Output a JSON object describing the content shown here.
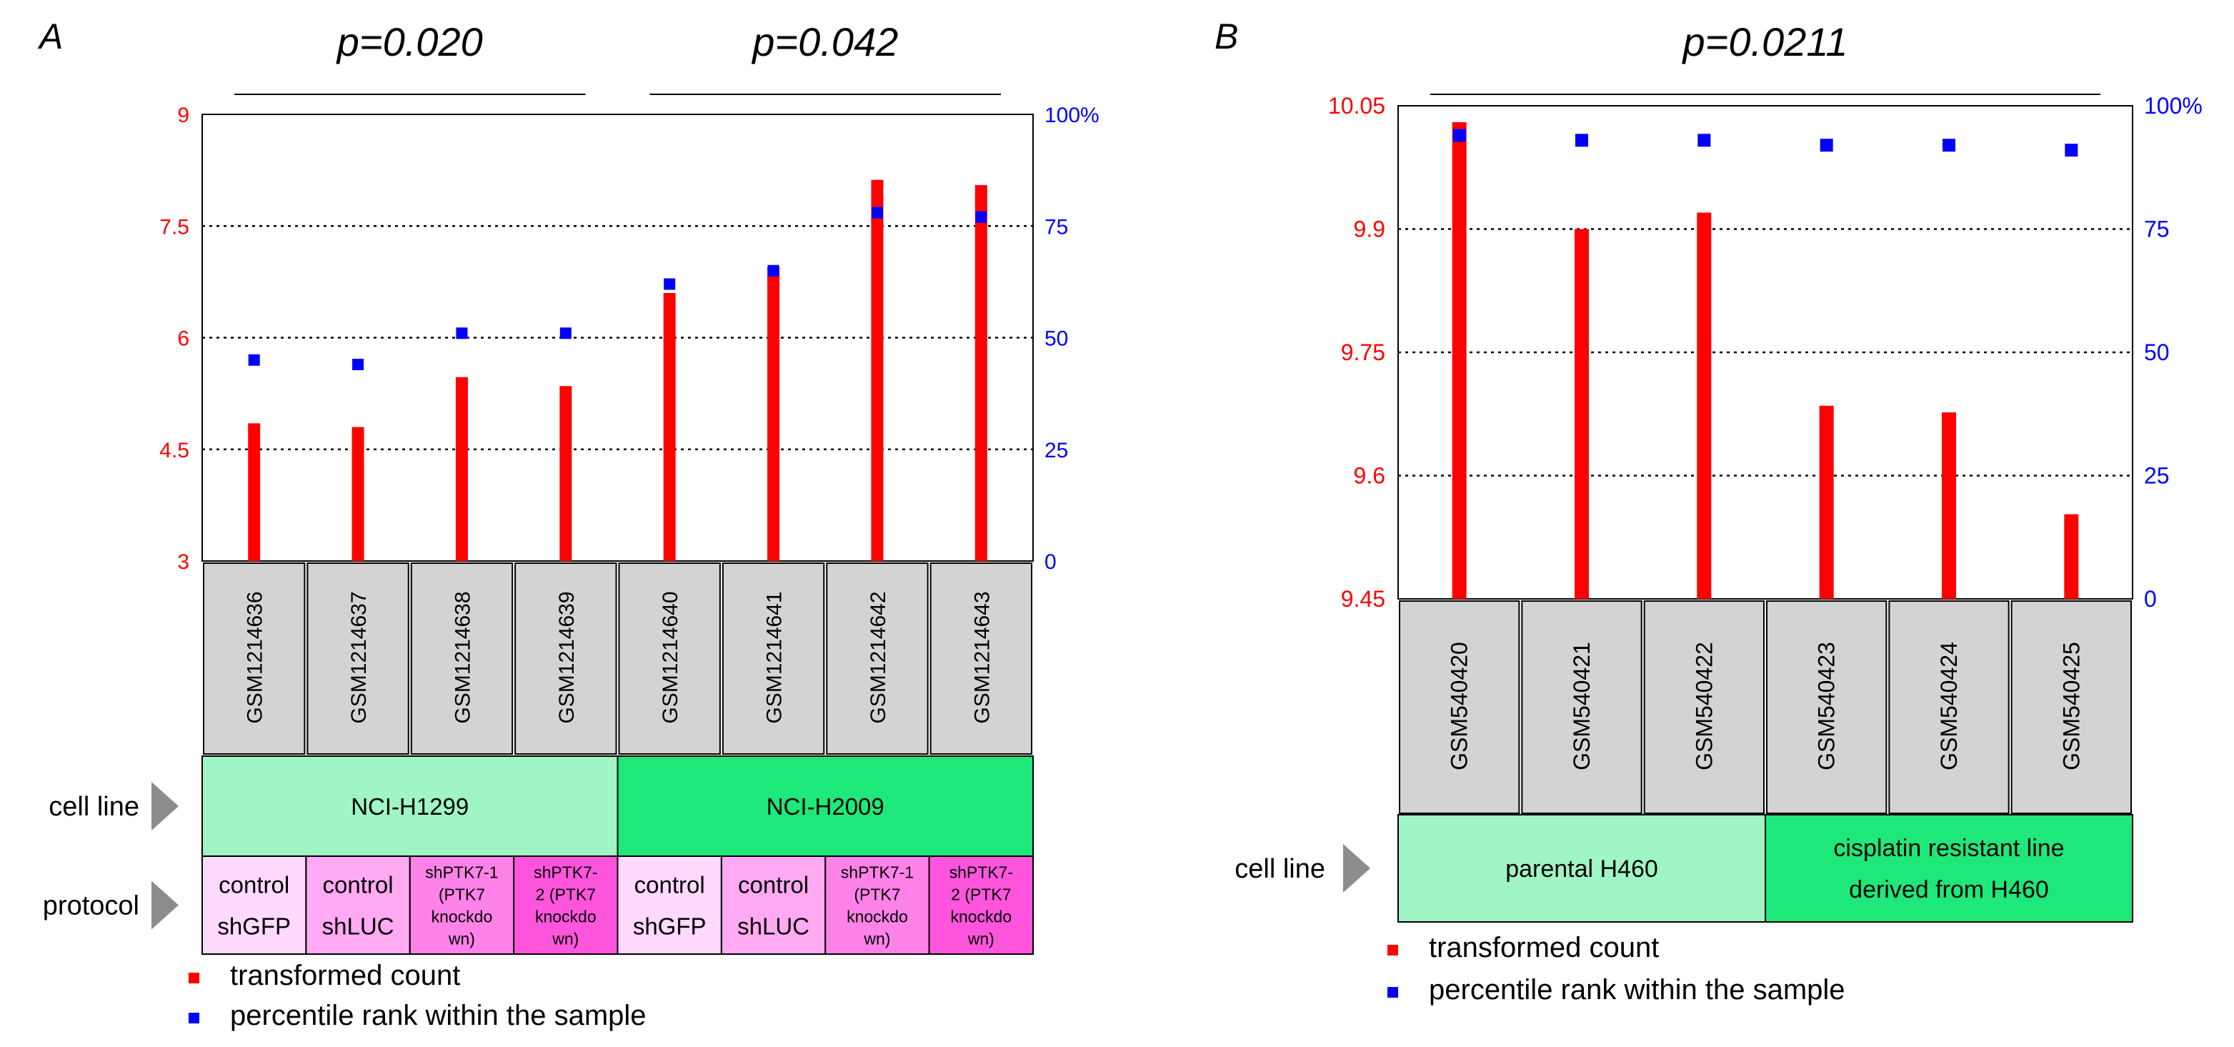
{
  "chart_data": [
    {
      "panel": "A",
      "type": "bar",
      "title_label": "A",
      "pvalues": [
        {
          "label": "p=0.020",
          "from": 0,
          "to": 3
        },
        {
          "label": "p=0.042",
          "from": 4,
          "to": 7
        }
      ],
      "left_axis": {
        "ylim": [
          3,
          9
        ],
        "ticks": [
          "3",
          "4.5",
          "6",
          "7.5",
          "9"
        ],
        "tick_values": [
          3,
          4.5,
          6,
          7.5,
          9
        ],
        "color": "#ff0000"
      },
      "right_axis": {
        "ylim": [
          0,
          100
        ],
        "ticks": [
          "0",
          "25",
          "50",
          "75",
          "100%"
        ],
        "tick_values": [
          0,
          25,
          50,
          75,
          100
        ],
        "color": "#0000ff"
      },
      "categories": [
        "GSM1214636",
        "GSM1214637",
        "GSM1214638",
        "GSM1214639",
        "GSM1214640",
        "GSM1214641",
        "GSM1214642",
        "GSM1214643"
      ],
      "series": [
        {
          "name": "transformed count",
          "axis": "left",
          "color": "#ff0000",
          "marker": "bar",
          "values": [
            4.85,
            4.8,
            5.47,
            5.35,
            6.6,
            6.95,
            8.12,
            8.05
          ]
        },
        {
          "name": "percentile rank within the sample",
          "axis": "right",
          "color": "#0000ff",
          "marker": "square",
          "values": [
            45,
            44,
            51,
            51,
            62,
            65,
            78,
            77
          ]
        }
      ],
      "annotation_rows": [
        {
          "label": "cell line",
          "groups": [
            {
              "text": "NCI-H1299",
              "span": 4,
              "color": "#9ff5c4"
            },
            {
              "text": "NCI-H2009",
              "span": 4,
              "color": "#1ee87a"
            }
          ]
        },
        {
          "label": "protocol",
          "groups": [
            {
              "lines": [
                "control",
                "shGFP"
              ],
              "span": 1,
              "color": "#ffd9ff"
            },
            {
              "lines": [
                "control",
                "shLUC"
              ],
              "span": 1,
              "color": "#ffaaf2"
            },
            {
              "lines": [
                "shPTK7-1",
                "(PTK7",
                "knockdo",
                "wn)"
              ],
              "span": 1,
              "color": "#ff82e8"
            },
            {
              "lines": [
                "shPTK7-",
                "2 (PTK7",
                "knockdo",
                "wn)"
              ],
              "span": 1,
              "color": "#ff55dd"
            },
            {
              "lines": [
                "control",
                "shGFP"
              ],
              "span": 1,
              "color": "#ffd9ff"
            },
            {
              "lines": [
                "control",
                "shLUC"
              ],
              "span": 1,
              "color": "#ffaaf2"
            },
            {
              "lines": [
                "shPTK7-1",
                "(PTK7",
                "knockdo",
                "wn)"
              ],
              "span": 1,
              "color": "#ff82e8"
            },
            {
              "lines": [
                "shPTK7-",
                "2 (PTK7",
                "knockdo",
                "wn)"
              ],
              "span": 1,
              "color": "#ff55dd"
            }
          ]
        }
      ],
      "legend": [
        "transformed count",
        "percentile rank within the sample"
      ]
    },
    {
      "panel": "B",
      "type": "bar",
      "title_label": "B",
      "pvalues": [
        {
          "label": "p=0.0211",
          "from": 0,
          "to": 5
        }
      ],
      "left_axis": {
        "ylim": [
          9.45,
          10.05
        ],
        "ticks": [
          "9.45",
          "9.6",
          "9.75",
          "9.9",
          "10.05"
        ],
        "tick_values": [
          9.45,
          9.6,
          9.75,
          9.9,
          10.05
        ],
        "color": "#ff0000"
      },
      "right_axis": {
        "ylim": [
          0,
          100
        ],
        "ticks": [
          "0",
          "25",
          "50",
          "75",
          "100%"
        ],
        "tick_values": [
          0,
          25,
          50,
          75,
          100
        ],
        "color": "#0000ff"
      },
      "categories": [
        "GSM540420",
        "GSM540421",
        "GSM540422",
        "GSM540423",
        "GSM540424",
        "GSM540425"
      ],
      "series": [
        {
          "name": "transformed count",
          "axis": "left",
          "color": "#ff0000",
          "marker": "bar",
          "values": [
            10.03,
            9.9,
            9.92,
            9.685,
            9.677,
            9.553
          ]
        },
        {
          "name": "percentile rank within the sample",
          "axis": "right",
          "color": "#0000ff",
          "marker": "square",
          "values": [
            94,
            93,
            93,
            92,
            92,
            91
          ]
        }
      ],
      "annotation_rows": [
        {
          "label": "cell line",
          "groups": [
            {
              "lines": [
                "parental H460"
              ],
              "span": 3,
              "color": "#9ff5c4"
            },
            {
              "lines": [
                "cisplatin resistant line",
                "derived from H460"
              ],
              "span": 3,
              "color": "#1ee87a"
            }
          ]
        }
      ],
      "legend": [
        "transformed count",
        "percentile rank within the sample"
      ]
    }
  ]
}
